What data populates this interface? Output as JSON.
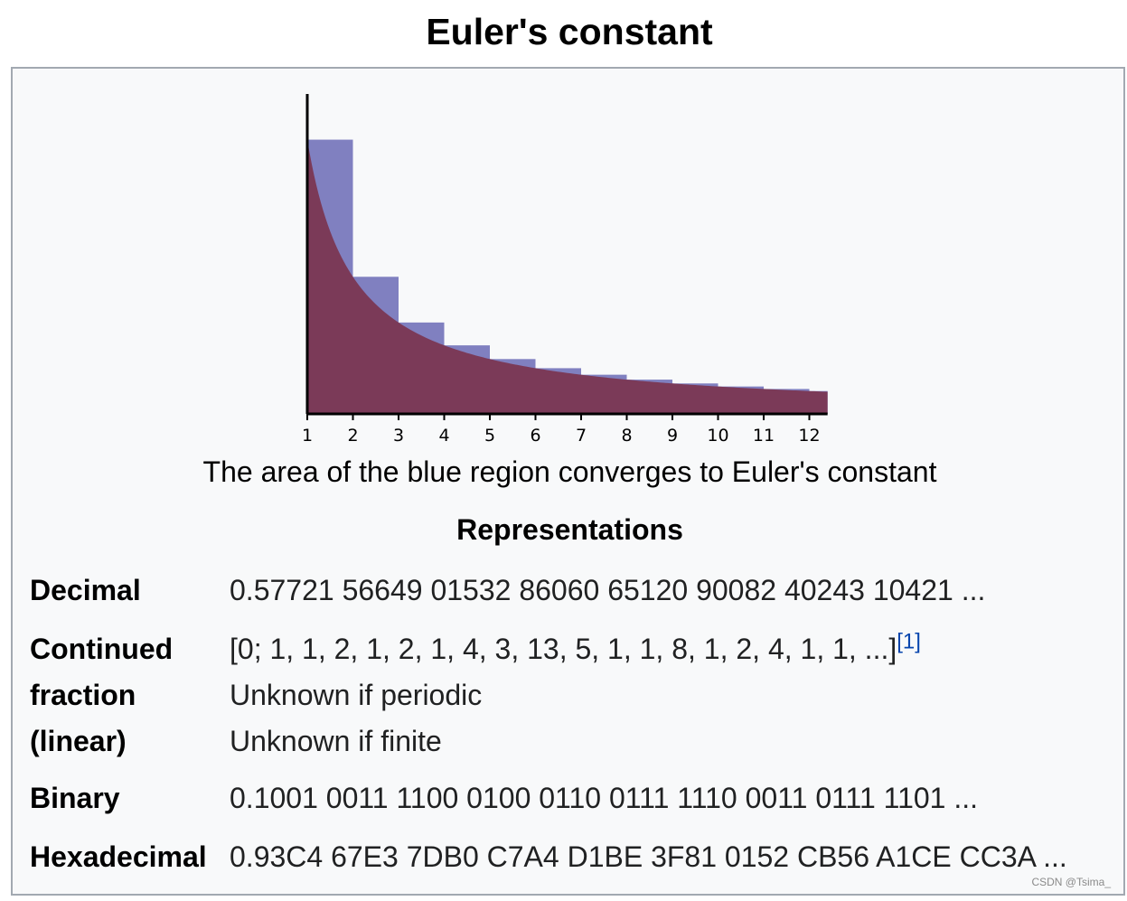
{
  "title": "Euler's constant",
  "figure": {
    "caption": "The area of the blue region converges to Euler's constant",
    "colors": {
      "blue_region": "#8080c0",
      "curve_area": "#7b3a58",
      "axis": "#000000"
    }
  },
  "chart_data": {
    "type": "area",
    "x_ticks": [
      "1",
      "2",
      "3",
      "4",
      "5",
      "6",
      "7",
      "8",
      "9",
      "10",
      "11",
      "12"
    ],
    "series": [
      {
        "kind": "step-bars",
        "heights": [
          1,
          0.5,
          0.3333,
          0.25,
          0.2,
          0.1667,
          0.1429,
          0.125,
          0.1111,
          0.1,
          0.0909,
          0.0833
        ]
      },
      {
        "kind": "curve",
        "function": "1/x"
      }
    ],
    "xlim": [
      1,
      12.4
    ],
    "ylim": [
      0,
      1.16
    ]
  },
  "representations": {
    "header": "Representations",
    "decimal": {
      "label": "Decimal",
      "value": "0.57721 56649 01532 86060 65120 90082 40243 10421 ..."
    },
    "continued_fraction": {
      "label_line1": "Continued",
      "label_line2": "fraction",
      "label_line3": "(linear)",
      "value": "[0; 1, 1, 2, 1, 2, 1, 4, 3, 13, 5, 1, 1, 8, 1, 2, 4, 1, 1, ...]",
      "ref": "[1]",
      "note_periodic": "Unknown if periodic",
      "note_finite": "Unknown if finite"
    },
    "binary": {
      "label": "Binary",
      "value": "0.1001 0011 1100 0100 0110 0111 1110 0011 0111 1101 ..."
    },
    "hexadecimal": {
      "label": "Hexadecimal",
      "value": "0.93C4 67E3 7DB0 C7A4 D1BE 3F81 0152 CB56 A1CE CC3A ..."
    }
  },
  "watermark": "CSDN @Tsima_"
}
